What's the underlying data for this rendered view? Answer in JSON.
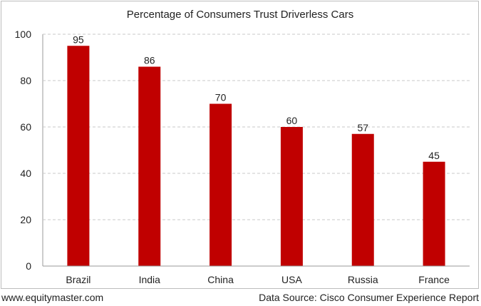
{
  "chart_data": {
    "type": "bar",
    "title": "Percentage of Consumers Trust Driverless Cars",
    "xlabel": "",
    "ylabel": "",
    "categories": [
      "Brazil",
      "India",
      "China",
      "USA",
      "Russia",
      "France"
    ],
    "values": [
      95,
      86,
      70,
      60,
      57,
      45
    ],
    "ylim": [
      0,
      100
    ],
    "yticks": [
      0,
      20,
      40,
      60,
      80,
      100
    ],
    "grid": true,
    "legend": "none",
    "data_labels": true,
    "bar_color": "#c00000"
  },
  "footer": {
    "website": "www.equitymaster.com",
    "source": "Data Source: Cisco Consumer Experience Report"
  }
}
